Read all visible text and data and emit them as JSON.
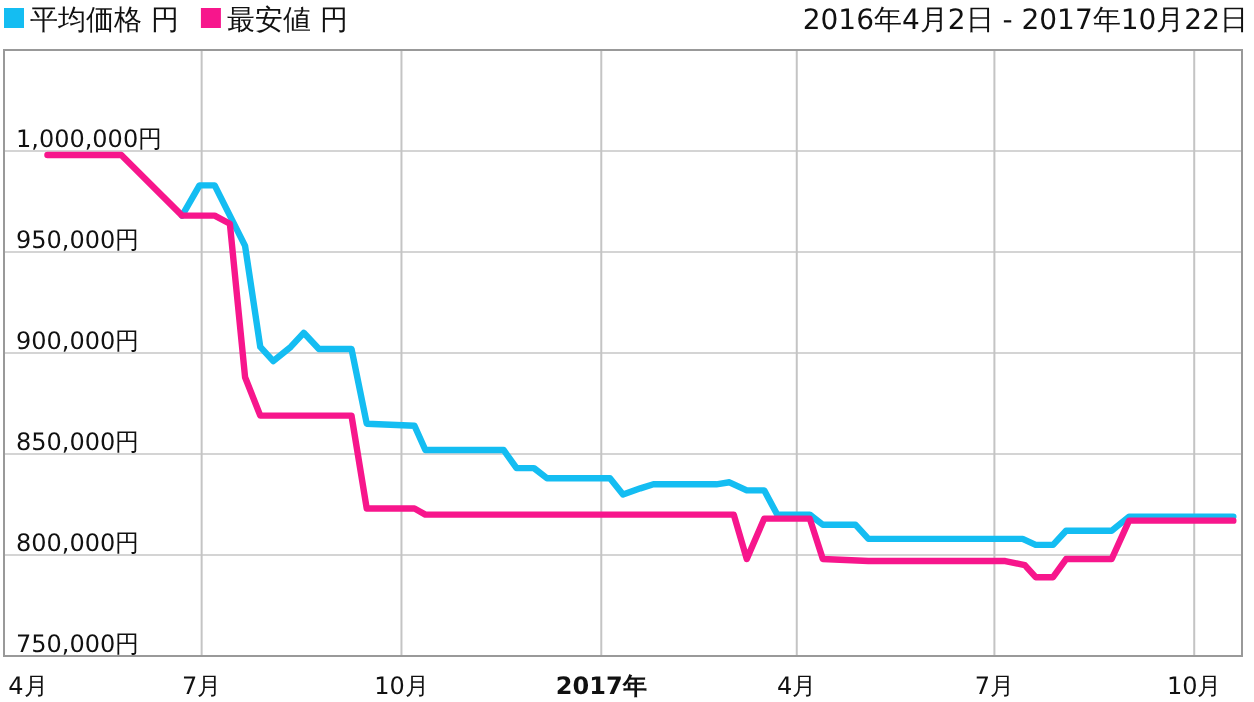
{
  "chart_data": {
    "type": "line",
    "subtitle": "2016年4月2日 - 2017年10月22日",
    "legend": "top left",
    "grid": true,
    "xlim": [
      "2016-04-01",
      "2017-10-23"
    ],
    "xticks": [
      {
        "value": "2016-04-01",
        "label": "4月"
      },
      {
        "value": "2016-07-01",
        "label": "7月"
      },
      {
        "value": "2016-10-01",
        "label": "10月"
      },
      {
        "value": "2017-01-01",
        "label": "**2017年**"
      },
      {
        "value": "2017-04-01",
        "label": "4月"
      },
      {
        "value": "2017-07-01",
        "label": "7月"
      },
      {
        "value": "2017-10-01",
        "label": "10月"
      }
    ],
    "ylim": [
      750000,
      1050000
    ],
    "yticks": [
      {
        "value": 750000,
        "label": "750,000円"
      },
      {
        "value": 800000,
        "label": "800,000円"
      },
      {
        "value": 850000,
        "label": "850,000円"
      },
      {
        "value": 900000,
        "label": "900,000円"
      },
      {
        "value": 950000,
        "label": "950,000円"
      },
      {
        "value": 1000000,
        "label": "1,000,000円"
      }
    ],
    "series": [
      {
        "name": "平均価格 円",
        "color": "#14bdf2",
        "x": [
          "2016-06-22",
          "2016-06-30",
          "2016-07-07",
          "2016-07-21",
          "2016-07-28",
          "2016-08-03",
          "2016-08-11",
          "2016-08-17",
          "2016-08-24",
          "2016-09-08",
          "2016-09-15",
          "2016-10-07",
          "2016-10-12",
          "2016-11-17",
          "2016-11-23",
          "2016-12-01",
          "2016-12-07",
          "2017-01-05",
          "2017-01-11",
          "2017-01-19",
          "2017-01-25",
          "2017-02-23",
          "2017-03-01",
          "2017-03-09",
          "2017-03-17",
          "2017-03-23",
          "2017-04-07",
          "2017-04-13",
          "2017-04-28",
          "2017-05-04",
          "2017-07-14",
          "2017-07-20",
          "2017-07-28",
          "2017-08-03",
          "2017-08-24",
          "2017-09-01",
          "2017-10-19"
        ],
        "values": [
          968000,
          983000,
          983000,
          953000,
          903000,
          896000,
          903000,
          910000,
          902000,
          902000,
          865000,
          864000,
          852000,
          852000,
          843000,
          843000,
          838000,
          838000,
          830000,
          833000,
          835000,
          835000,
          836000,
          832000,
          832000,
          820000,
          820000,
          815000,
          815000,
          808000,
          808000,
          805000,
          805000,
          812000,
          812000,
          819000,
          819000
        ]
      },
      {
        "name": "最安値 円",
        "color": "#f7168c",
        "x": [
          "2016-04-21",
          "2016-05-25",
          "2016-06-22",
          "2016-07-07",
          "2016-07-14",
          "2016-07-21",
          "2016-07-28",
          "2016-09-08",
          "2016-09-15",
          "2016-10-07",
          "2016-10-12",
          "2017-03-03",
          "2017-03-09",
          "2017-03-17",
          "2017-04-07",
          "2017-04-13",
          "2017-05-04",
          "2017-07-06",
          "2017-07-15",
          "2017-07-20",
          "2017-07-28",
          "2017-08-03",
          "2017-08-24",
          "2017-09-01",
          "2017-10-19"
        ],
        "values": [
          998000,
          998000,
          968000,
          968000,
          964000,
          888000,
          869000,
          869000,
          823000,
          823000,
          820000,
          820000,
          798000,
          818000,
          818000,
          798000,
          797000,
          797000,
          795000,
          789000,
          789000,
          798000,
          798000,
          817000,
          817000
        ]
      }
    ]
  }
}
